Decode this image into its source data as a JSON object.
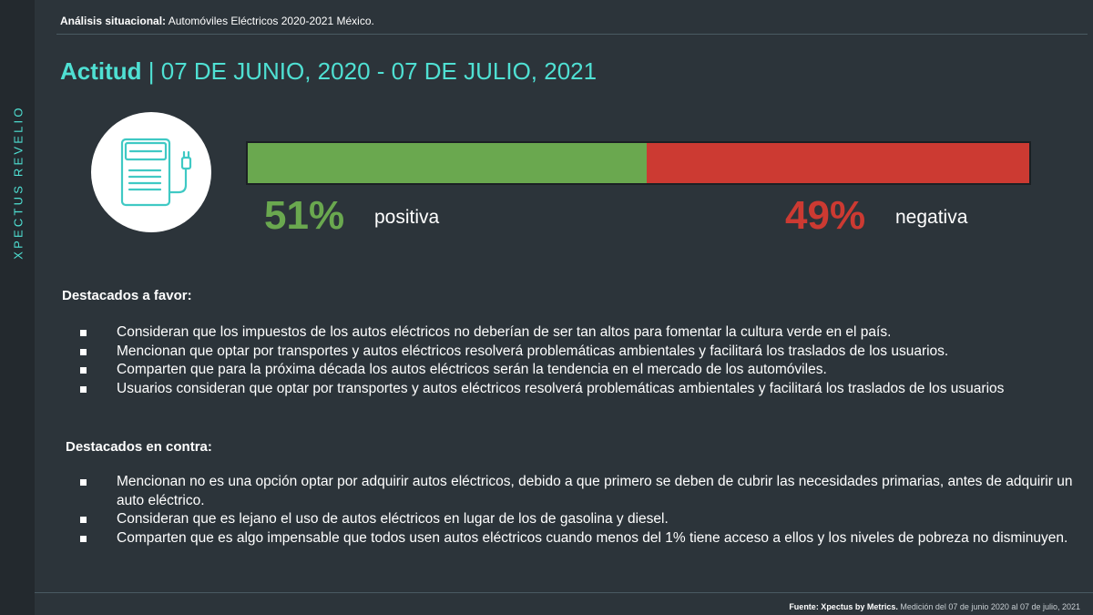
{
  "brand": {
    "vertical_label": "XPECTUS REVELIO",
    "accent": "#4fe0d3"
  },
  "header": {
    "label_bold": "Análisis situacional:",
    "label_text": "Automóviles Eléctricos  2020-2021 México."
  },
  "title": {
    "bold": "Actitud",
    "separator": " | ",
    "dates": "07 DE JUNIO, 2020 - 07 DE JULIO, 2021"
  },
  "icon": {
    "name": "charging-station-icon"
  },
  "sentiment": {
    "positive": {
      "value": 51,
      "label": "51%",
      "text": "positiva",
      "color": "#6aa84f"
    },
    "negative": {
      "value": 49,
      "label": "49%",
      "text": "negativa",
      "color": "#cc3a32"
    }
  },
  "favor": {
    "heading": "Destacados a favor:",
    "items": [
      "Consideran que los impuestos de los autos eléctricos no deberían de ser tan altos para fomentar la cultura verde en el país.",
      "Mencionan que optar por transportes y autos eléctricos resolverá problemáticas ambientales y facilitará los traslados de los usuarios.",
      "Comparten que para la próxima década los autos eléctricos serán la tendencia en el mercado de los automóviles.",
      "Usuarios consideran que optar por transportes y autos eléctricos resolverá problemáticas ambientales y facilitará los traslados de los usuarios"
    ]
  },
  "contra": {
    "heading": "Destacados en contra:",
    "items": [
      "Mencionan no es una opción optar por adquirir autos eléctricos, debido a que primero se deben de cubrir las necesidades primarias, antes de adquirir un auto eléctrico.",
      "Consideran que es lejano el uso de autos eléctricos en lugar de los de gasolina y diesel.",
      "Comparten que es algo impensable que todos usen autos eléctricos cuando menos del 1% tiene acceso a ellos y los niveles de pobreza no disminuyen."
    ]
  },
  "footer": {
    "source_bold": "Fuente: Xpectus by Metrics.",
    "source_text": " Medición del 07 de junio 2020 al 07 de julio, 2021"
  }
}
